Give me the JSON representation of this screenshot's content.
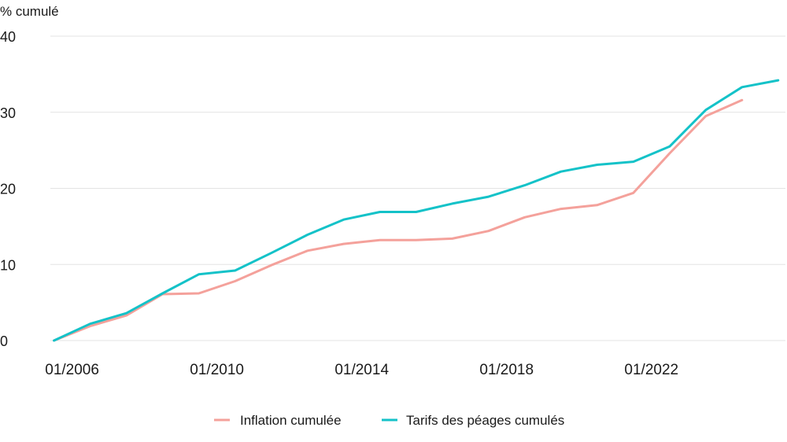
{
  "chart_data": {
    "type": "line",
    "ylabel": "% cumulé",
    "ylim": [
      0,
      40
    ],
    "yticks": [
      0,
      10,
      20,
      30,
      40
    ],
    "xlim": [
      2005.4,
      2025.7
    ],
    "xticks": [
      {
        "value": 2006,
        "label": "01/2006"
      },
      {
        "value": 2010,
        "label": "01/2010"
      },
      {
        "value": 2014,
        "label": "01/2014"
      },
      {
        "value": 2018,
        "label": "01/2018"
      },
      {
        "value": 2022,
        "label": "01/2022"
      }
    ],
    "grid": true,
    "legend_position": "bottom",
    "series": [
      {
        "name": "Inflation cumulée",
        "color": "#f4a19b",
        "x": [
          2005.5,
          2006.5,
          2007.5,
          2008.5,
          2009.5,
          2010.5,
          2011.5,
          2012.5,
          2013.5,
          2014.5,
          2015.5,
          2016.5,
          2017.5,
          2018.5,
          2019.5,
          2020.5,
          2021.5,
          2022.5,
          2023.5,
          2024.5
        ],
        "y": [
          0,
          1.9,
          3.3,
          6.1,
          6.2,
          7.8,
          9.9,
          11.8,
          12.7,
          13.2,
          13.2,
          13.4,
          14.4,
          16.2,
          17.3,
          17.8,
          19.4,
          24.6,
          29.5,
          31.6
        ]
      },
      {
        "name": "Tarifs des péages cumulés",
        "color": "#14c2c8",
        "x": [
          2005.5,
          2006.5,
          2007.5,
          2008.5,
          2009.5,
          2010.5,
          2011.5,
          2012.5,
          2013.5,
          2014.5,
          2015.5,
          2016.5,
          2017.5,
          2018.5,
          2019.5,
          2020.5,
          2021.5,
          2022.5,
          2023.5,
          2024.5,
          2025.5
        ],
        "y": [
          0,
          2.2,
          3.6,
          6.2,
          8.7,
          9.2,
          11.5,
          13.9,
          15.9,
          16.9,
          16.9,
          18.0,
          18.9,
          20.4,
          22.2,
          23.1,
          23.5,
          25.5,
          30.3,
          33.3,
          34.2
        ]
      }
    ]
  }
}
